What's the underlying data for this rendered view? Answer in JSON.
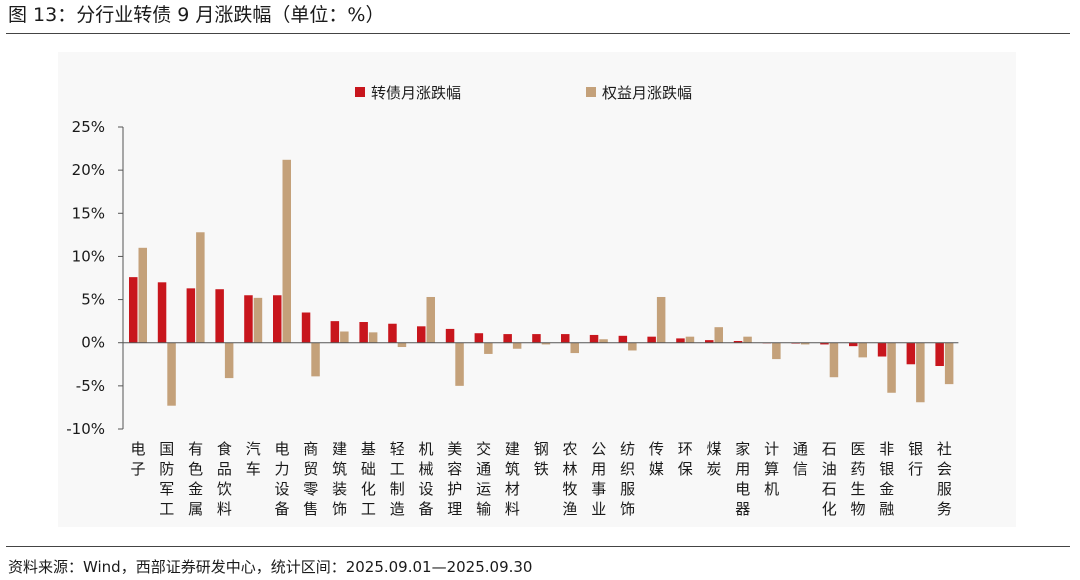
{
  "figure": {
    "title": "图 13：分行业转债 9 月涨跌幅（单位：%）",
    "source": "资料来源：Wind，西部证券研发中心，统计区间：2025.09.01—2025.09.30"
  },
  "colors": {
    "series1": "#c8161d",
    "series2": "#c4a17a",
    "plot_bg": "#f8f8f8",
    "axis": "#555555"
  },
  "chart_data": {
    "type": "bar",
    "title": "",
    "xlabel": "",
    "ylabel": "",
    "ylim": [
      -10,
      25
    ],
    "yticks": [
      25,
      20,
      15,
      10,
      5,
      0,
      -5,
      -10
    ],
    "ytick_labels": [
      "25%",
      "20%",
      "15%",
      "10%",
      "5%",
      "0%",
      "-5%",
      "-10%"
    ],
    "legend_position": "top",
    "categories": [
      "电子",
      "国防军工",
      "有色金属",
      "食品饮料",
      "汽车",
      "电力设备",
      "商贸零售",
      "建筑装饰",
      "基础化工",
      "轻工制造",
      "机械设备",
      "美容护理",
      "交通运输",
      "建筑材料",
      "钢铁",
      "农林牧渔",
      "公用事业",
      "纺织服饰",
      "传媒",
      "环保",
      "煤炭",
      "家用电器",
      "计算机",
      "通信",
      "石油石化",
      "医药生物",
      "非银金融",
      "银行",
      "社会服务"
    ],
    "series": [
      {
        "name": "转债月涨跌幅",
        "values": [
          7.6,
          7.0,
          6.3,
          6.2,
          5.5,
          5.5,
          3.5,
          2.5,
          2.4,
          2.2,
          1.9,
          1.6,
          1.1,
          1.0,
          1.0,
          1.0,
          0.9,
          0.8,
          0.7,
          0.5,
          0.3,
          0.2,
          0.0,
          -0.1,
          -0.2,
          -0.4,
          -1.6,
          -2.5,
          -2.7
        ]
      },
      {
        "name": "权益月涨跌幅",
        "values": [
          11.0,
          -7.3,
          12.8,
          -4.1,
          5.2,
          21.2,
          -3.9,
          1.3,
          1.2,
          -0.5,
          5.3,
          -5.0,
          -1.3,
          -0.7,
          -0.2,
          -1.2,
          0.4,
          -0.9,
          5.3,
          0.7,
          1.8,
          0.7,
          -1.9,
          -0.2,
          -4.0,
          -1.7,
          -5.8,
          -6.9,
          -4.8
        ]
      }
    ]
  }
}
